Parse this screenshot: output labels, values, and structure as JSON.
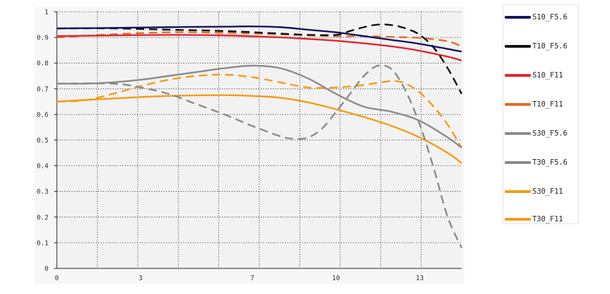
{
  "chart_data": {
    "type": "line",
    "title": "",
    "xlabel": "",
    "ylabel": "",
    "xlim": [
      0,
      14.5
    ],
    "ylim": [
      0,
      1
    ],
    "x_ticks": [
      0,
      3,
      7,
      10,
      13
    ],
    "y_ticks": [
      0,
      0.1,
      0.2,
      0.3,
      0.4,
      0.5,
      0.6,
      0.7,
      0.8,
      0.9,
      1
    ],
    "grid": true,
    "legend_position": "right",
    "series": [
      {
        "name": "S10_F5.6",
        "color": "#14145f",
        "dash": "solid",
        "x": [
          0,
          2,
          4,
          6,
          7,
          8,
          9,
          10,
          11,
          12,
          13,
          14.5
        ],
        "y": [
          0.935,
          0.937,
          0.94,
          0.942,
          0.943,
          0.94,
          0.93,
          0.92,
          0.905,
          0.89,
          0.875,
          0.845
        ]
      },
      {
        "name": "T10_F5.6",
        "color": "#111111",
        "dash": "dashed",
        "x": [
          0,
          2,
          4,
          6,
          8,
          9,
          10,
          10.5,
          11,
          11.5,
          12,
          12.5,
          13,
          13.5,
          14,
          14.5
        ],
        "y": [
          0.935,
          0.935,
          0.93,
          0.925,
          0.915,
          0.91,
          0.91,
          0.925,
          0.94,
          0.95,
          0.948,
          0.935,
          0.91,
          0.86,
          0.78,
          0.68
        ]
      },
      {
        "name": "S10_F11",
        "color": "#e0262b",
        "dash": "solid",
        "x": [
          0,
          2,
          4,
          6,
          8,
          9,
          10,
          11,
          12,
          13,
          14,
          14.5
        ],
        "y": [
          0.905,
          0.908,
          0.91,
          0.908,
          0.9,
          0.894,
          0.887,
          0.877,
          0.865,
          0.848,
          0.825,
          0.81
        ]
      },
      {
        "name": "T10_F11",
        "color": "#e8692a",
        "dash": "dashed",
        "x": [
          0,
          2,
          4,
          6,
          8,
          9,
          10,
          11,
          12,
          13,
          14,
          14.5
        ],
        "y": [
          0.9,
          0.912,
          0.92,
          0.918,
          0.912,
          0.908,
          0.905,
          0.905,
          0.902,
          0.898,
          0.885,
          0.865
        ]
      },
      {
        "name": "S30_F5.6",
        "color": "#8a8a8a",
        "dash": "solid",
        "x": [
          0,
          1,
          2,
          3,
          4,
          5,
          6,
          7,
          8,
          9,
          10,
          11,
          12,
          13,
          14,
          14.5
        ],
        "y": [
          0.72,
          0.72,
          0.725,
          0.735,
          0.75,
          0.765,
          0.78,
          0.79,
          0.78,
          0.74,
          0.68,
          0.63,
          0.61,
          0.575,
          0.51,
          0.47
        ]
      },
      {
        "name": "T30_F5.6",
        "color": "#8a8a8a",
        "dash": "dashed",
        "x": [
          0,
          2,
          3,
          4,
          5,
          6,
          7,
          8,
          8.5,
          9,
          9.5,
          10,
          10.5,
          11,
          11.5,
          12,
          12.5,
          13,
          13.5,
          14,
          14.5
        ],
        "y": [
          0.72,
          0.72,
          0.705,
          0.68,
          0.64,
          0.6,
          0.555,
          0.515,
          0.505,
          0.51,
          0.545,
          0.61,
          0.68,
          0.75,
          0.79,
          0.775,
          0.69,
          0.56,
          0.39,
          0.2,
          0.08
        ]
      },
      {
        "name": "S30_F11",
        "color": "#f39c12",
        "dash": "solid",
        "x": [
          0,
          2,
          4,
          6,
          7,
          8,
          9,
          10,
          11,
          12,
          13,
          14,
          14.5
        ],
        "y": [
          0.65,
          0.662,
          0.672,
          0.675,
          0.672,
          0.665,
          0.647,
          0.62,
          0.59,
          0.555,
          0.51,
          0.45,
          0.41
        ]
      },
      {
        "name": "T30_F11",
        "color": "#f39c12",
        "dash": "dashed",
        "x": [
          0,
          1,
          2,
          3,
          4,
          5,
          6,
          7,
          8,
          9,
          10,
          11,
          12,
          12.5,
          13,
          13.5,
          14,
          14.5
        ],
        "y": [
          0.65,
          0.655,
          0.68,
          0.71,
          0.735,
          0.75,
          0.755,
          0.745,
          0.725,
          0.705,
          0.705,
          0.715,
          0.73,
          0.72,
          0.685,
          0.63,
          0.56,
          0.47
        ]
      }
    ]
  }
}
